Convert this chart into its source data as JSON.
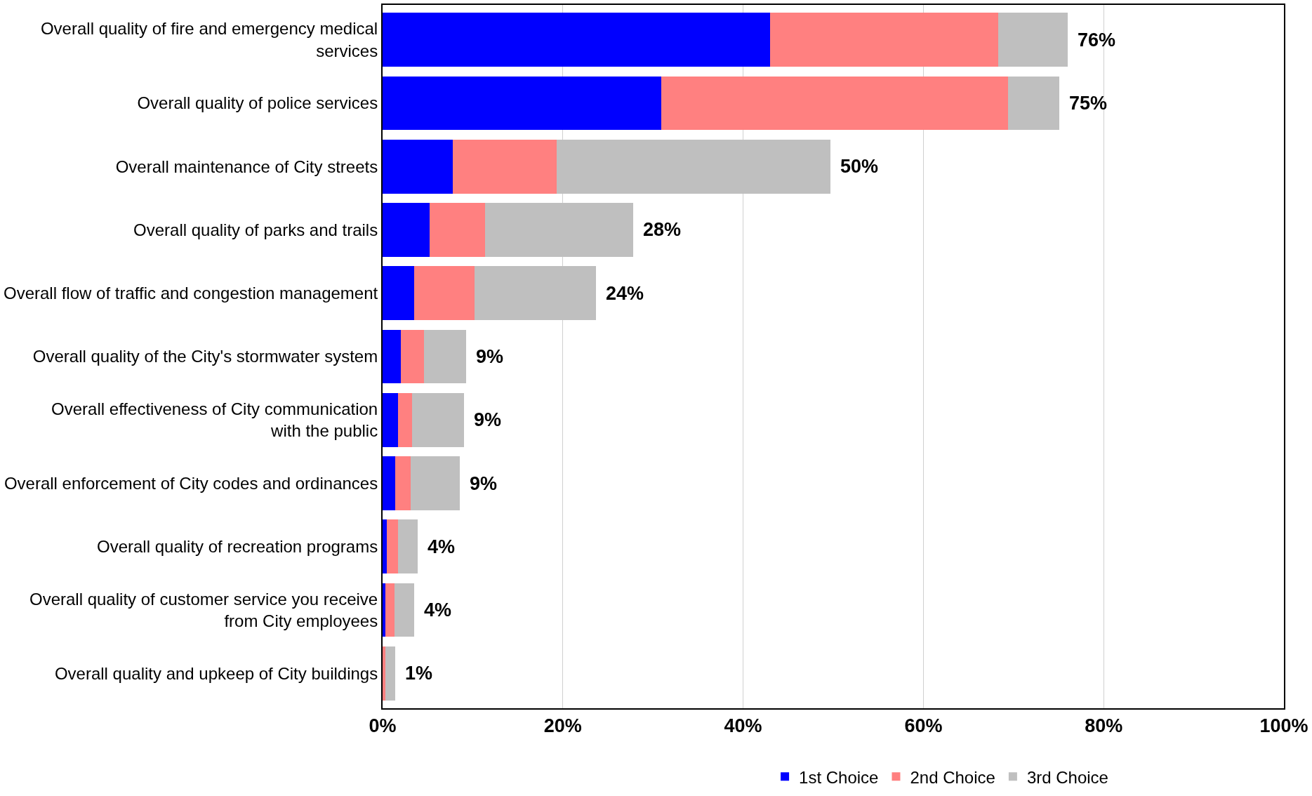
{
  "chart_data": {
    "type": "bar",
    "orientation": "horizontal",
    "stacked": true,
    "categories": [
      "Overall quality of fire and emergency medical\nservices",
      "Overall quality of police services",
      "Overall maintenance of City streets",
      "Overall quality of parks and trails",
      "Overall flow of traffic and congestion management",
      "Overall quality of the City's stormwater system",
      "Overall effectiveness of City communication\nwith the public",
      "Overall enforcement of City codes and ordinances",
      "Overall quality of recreation programs",
      "Overall quality of customer service you receive\nfrom City employees",
      "Overall quality and upkeep of City buildings"
    ],
    "series": [
      {
        "name": "1st Choice",
        "color": "#0000ff",
        "values": [
          43.0,
          30.9,
          7.8,
          5.2,
          3.5,
          2.0,
          1.7,
          1.4,
          0.5,
          0.3,
          null
        ]
      },
      {
        "name": "2nd Choice",
        "color": "#ff8080",
        "values": [
          25.3,
          38.5,
          11.5,
          6.2,
          6.7,
          2.6,
          1.6,
          1.7,
          1.2,
          1.0,
          0.3
        ]
      },
      {
        "name": "3rd Choice",
        "color": "#bfbfbf",
        "values": [
          7.7,
          5.7,
          30.4,
          16.4,
          13.5,
          4.7,
          5.7,
          5.5,
          2.2,
          2.2,
          1.1
        ]
      }
    ],
    "totals": [
      "76%",
      "75%",
      "50%",
      "28%",
      "24%",
      "9%",
      "9%",
      "9%",
      "4%",
      "4%",
      "1%"
    ],
    "xlim": [
      0,
      100
    ],
    "xticks": [
      {
        "value": 0,
        "label": "0%"
      },
      {
        "value": 20,
        "label": "20%"
      },
      {
        "value": 40,
        "label": "40%"
      },
      {
        "value": 60,
        "label": "60%"
      },
      {
        "value": 80,
        "label": "80%"
      },
      {
        "value": 100,
        "label": "100%"
      }
    ],
    "grid": "x",
    "legend": "bottom"
  }
}
